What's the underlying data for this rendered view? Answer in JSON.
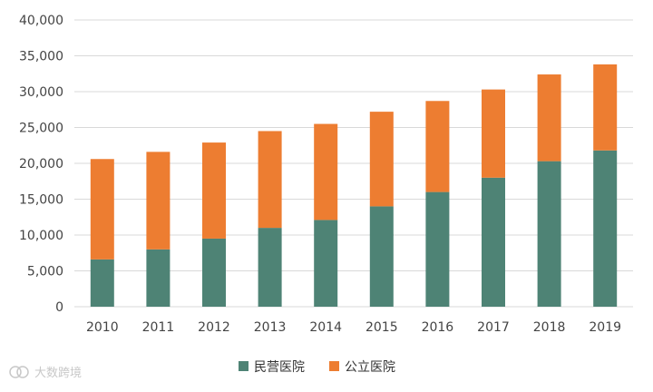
{
  "chart_data": {
    "type": "bar",
    "stacked": true,
    "categories": [
      "2010",
      "2011",
      "2012",
      "2013",
      "2014",
      "2015",
      "2016",
      "2017",
      "2018",
      "2019"
    ],
    "series": [
      {
        "name": "民营医院",
        "color": "#4e8375",
        "values": [
          6600,
          8000,
          9500,
          11000,
          12100,
          14000,
          16000,
          18000,
          20300,
          21800
        ]
      },
      {
        "name": "公立医院",
        "color": "#ed7d31",
        "values": [
          14000,
          13600,
          13400,
          13500,
          13400,
          13200,
          12700,
          12300,
          12100,
          12000
        ]
      }
    ],
    "ylim": [
      0,
      40000
    ],
    "yticks": [
      0,
      5000,
      10000,
      15000,
      20000,
      25000,
      30000,
      35000,
      40000
    ],
    "ytick_labels": [
      "0",
      "5,000",
      "10,000",
      "15,000",
      "20,000",
      "25,000",
      "30,000",
      "35,000",
      "40,000"
    ],
    "grid": true,
    "legend_position": "bottom"
  },
  "watermark": {
    "text": "大数跨境"
  }
}
